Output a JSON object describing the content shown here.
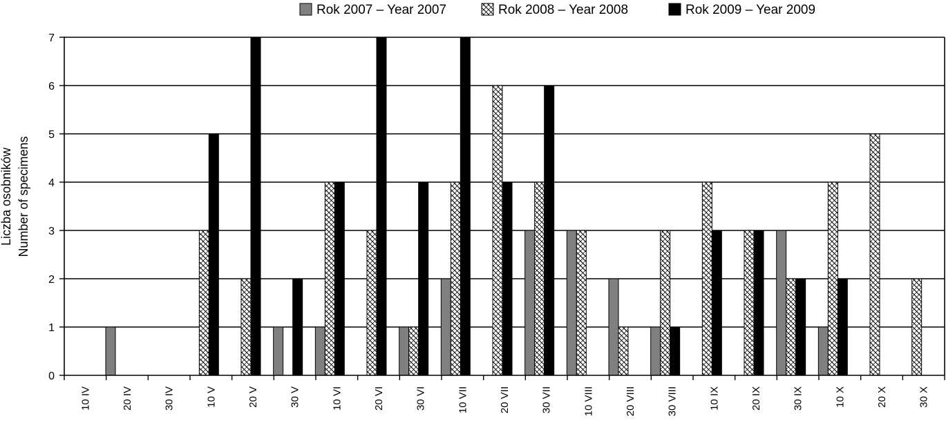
{
  "chart_data": {
    "type": "bar",
    "categories": [
      "10 IV",
      "20 IV",
      "30 IV",
      "10 V",
      "20 V",
      "30 V",
      "10 VI",
      "20 VI",
      "30 VI",
      "10 VII",
      "20 VII",
      "30 VII",
      "10 VIII",
      "20 VIII",
      "30 VIII",
      "10 IX",
      "20 IX",
      "30 IX",
      "10 X",
      "20 X",
      "30 X"
    ],
    "series": [
      {
        "name": "Rok 2007 – Year 2007",
        "color": "#808080",
        "pattern": "solid-gray",
        "values": [
          0,
          1,
          0,
          0,
          0,
          1,
          1,
          0,
          1,
          2,
          0,
          3,
          3,
          2,
          1,
          0,
          0,
          3,
          1,
          0,
          0
        ]
      },
      {
        "name": "Rok 2008 – Year 2008",
        "color": "#ffffff",
        "pattern": "crosshatch",
        "values": [
          0,
          0,
          0,
          3,
          2,
          0,
          4,
          3,
          1,
          4,
          6,
          4,
          3,
          1,
          3,
          4,
          3,
          2,
          4,
          5,
          2
        ]
      },
      {
        "name": "Rok 2009 – Year 2009",
        "color": "#000000",
        "pattern": "solid-black",
        "values": [
          0,
          0,
          0,
          5,
          7,
          2,
          4,
          7,
          4,
          7,
          4,
          6,
          0,
          0,
          1,
          3,
          3,
          2,
          2,
          0,
          0
        ]
      }
    ],
    "ylabel_lines": [
      "Liczba osobników",
      "Number of specimens"
    ],
    "xlabel": "",
    "ylim": [
      0,
      7
    ],
    "yticks": [
      0,
      1,
      2,
      3,
      4,
      5,
      6,
      7
    ],
    "grid": true,
    "legend_position": "top"
  }
}
